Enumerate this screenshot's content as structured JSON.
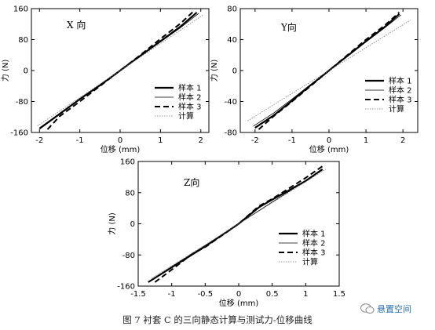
{
  "figure": {
    "caption": "图 7 衬套 C 的三向静态计算与测试力-位移曲线",
    "watermark": "悬置空间"
  },
  "chart_data": [
    {
      "type": "line",
      "title": "X 向",
      "xlabel": "位移 (mm)",
      "ylabel": "力 (N)",
      "xlim": [
        -2.2,
        2.2
      ],
      "ylim": [
        -160,
        160
      ],
      "xticks": [
        -2,
        -1,
        0,
        1,
        2
      ],
      "yticks": [
        -160,
        -80,
        0,
        80,
        160
      ],
      "legend_position": "lower-right",
      "series": [
        {
          "name": "样本 1",
          "style": "thick",
          "x": [
            -2,
            -1.5,
            -1,
            -0.5,
            0,
            0.5,
            1,
            1.5,
            1.9
          ],
          "y": [
            -150,
            -112,
            -74,
            -38,
            0,
            38,
            76,
            114,
            150
          ]
        },
        {
          "name": "样本 2",
          "style": "thin",
          "x": [
            -2,
            -1.5,
            -1,
            -0.5,
            0,
            0.5,
            1,
            1.5,
            1.95
          ],
          "y": [
            -148,
            -111,
            -74,
            -37,
            0,
            37,
            74,
            111,
            148
          ]
        },
        {
          "name": "样本 3",
          "style": "dashed",
          "x": [
            -1.8,
            -1.5,
            -1,
            -0.5,
            0,
            0.5,
            1,
            1.5,
            1.85
          ],
          "y": [
            -152,
            -118,
            -80,
            -40,
            0,
            40,
            82,
            122,
            156
          ]
        },
        {
          "name": "计算",
          "style": "dotted",
          "x": [
            -2.05,
            2.05
          ],
          "y": [
            -143,
            143
          ]
        }
      ]
    },
    {
      "type": "line",
      "title": "Y向",
      "xlabel": "位移 (mm)",
      "ylabel": "力 (N)",
      "xlim": [
        -2.4,
        2.4
      ],
      "ylim": [
        -80,
        80
      ],
      "xticks": [
        -2,
        -1,
        0,
        1,
        2
      ],
      "yticks": [
        -80,
        -40,
        0,
        40,
        80
      ],
      "legend_position": "lower-right",
      "series": [
        {
          "name": "样本 1",
          "style": "thick",
          "x": [
            -2,
            -1.5,
            -1,
            -0.5,
            0,
            0.5,
            1,
            1.5,
            1.9
          ],
          "y": [
            -74,
            -58,
            -39,
            -19,
            0,
            19,
            38,
            56,
            73
          ]
        },
        {
          "name": "样本 2",
          "style": "thin",
          "x": [
            -2.05,
            -1.5,
            -1,
            -0.5,
            0,
            0.5,
            1,
            1.5,
            1.95
          ],
          "y": [
            -72,
            -55,
            -37,
            -18,
            0,
            18,
            37,
            55,
            72
          ]
        },
        {
          "name": "样本 3",
          "style": "dashed",
          "x": [
            -1.9,
            -1.5,
            -1,
            -0.5,
            0,
            0.5,
            1,
            1.5,
            1.9
          ],
          "y": [
            -76,
            -59,
            -40,
            -20,
            0,
            20,
            40,
            58,
            75
          ]
        },
        {
          "name": "计算",
          "style": "dotted",
          "x": [
            -2.2,
            2.2
          ],
          "y": [
            -65,
            65
          ]
        }
      ]
    },
    {
      "type": "line",
      "title": "Z向",
      "xlabel": "位移 (mm)",
      "ylabel": "力 (N)",
      "xlim": [
        -1.5,
        1.5
      ],
      "ylim": [
        -160,
        160
      ],
      "xticks": [
        -1.5,
        -1,
        -0.5,
        0,
        0.5,
        1,
        1.5
      ],
      "yticks": [
        -160,
        -80,
        0,
        80,
        160
      ],
      "legend_position": "lower-right",
      "series": [
        {
          "name": "样本 1",
          "style": "thick",
          "x": [
            -1.35,
            -1,
            -0.5,
            0,
            0.3,
            0.5,
            1,
            1.25
          ],
          "y": [
            -150,
            -112,
            -58,
            0,
            42,
            62,
            110,
            140
          ]
        },
        {
          "name": "样本 2",
          "style": "thin",
          "x": [
            -1.3,
            -1,
            -0.5,
            0,
            0.5,
            1,
            1.25
          ],
          "y": [
            -145,
            -110,
            -56,
            0,
            56,
            110,
            138
          ]
        },
        {
          "name": "样本 3",
          "style": "dashed",
          "x": [
            -1.25,
            -1,
            -0.7,
            -0.5,
            0,
            0.3,
            0.5,
            1,
            1.25
          ],
          "y": [
            -150,
            -118,
            -78,
            -60,
            0,
            45,
            64,
            118,
            148
          ]
        },
        {
          "name": "计算",
          "style": "dotted",
          "x": [
            -1.3,
            1.3
          ],
          "y": [
            -140,
            140
          ]
        }
      ]
    }
  ]
}
